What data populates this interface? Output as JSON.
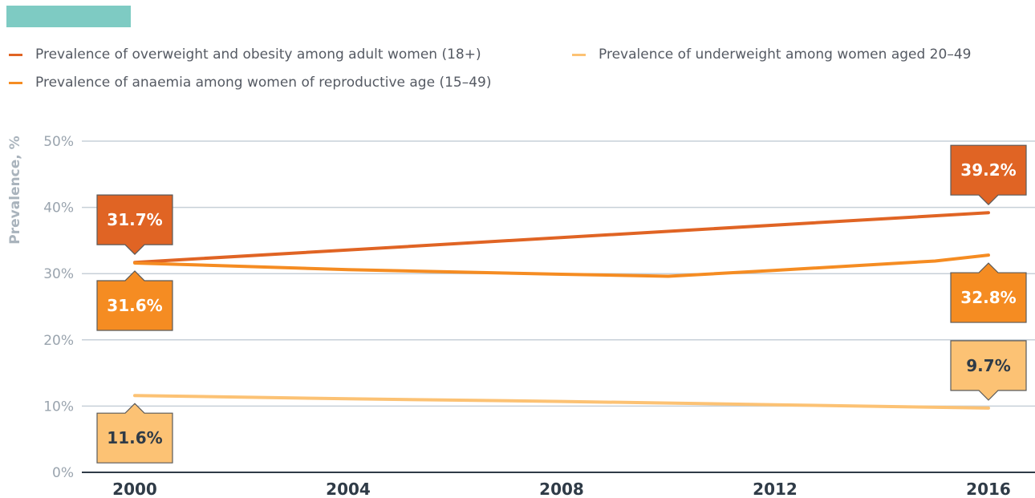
{
  "chart_data": {
    "type": "line",
    "title": "",
    "xlabel": "",
    "ylabel": "Prevalence, %",
    "x": [
      2000,
      2004,
      2008,
      2010,
      2012,
      2015,
      2016
    ],
    "x_ticks": [
      "2000",
      "2004",
      "2008",
      "2012",
      "2016"
    ],
    "y_ticks": [
      "0%",
      "10%",
      "20%",
      "30%",
      "40%",
      "50%"
    ],
    "xlim": [
      2000,
      2016
    ],
    "ylim": [
      0,
      50
    ],
    "grid": true,
    "legend_position": "top-left",
    "series": [
      {
        "name": "Prevalence of overweight and obesity among adult women (18+)",
        "color": "#e06424",
        "x": [
          2000,
          2016
        ],
        "values": [
          31.7,
          39.2
        ],
        "labels": [
          {
            "x": 2000,
            "text": "31.7%",
            "position": "above"
          },
          {
            "x": 2016,
            "text": "39.2%",
            "position": "above"
          }
        ]
      },
      {
        "name": "Prevalence of underweight among women aged 20–49",
        "color": "#fcc274",
        "x": [
          2000,
          2004,
          2008,
          2012,
          2016
        ],
        "values": [
          11.6,
          11.1,
          10.7,
          10.2,
          9.7
        ],
        "labels": [
          {
            "x": 2000,
            "text": "11.6%",
            "position": "below"
          },
          {
            "x": 2016,
            "text": "9.7%",
            "position": "above"
          }
        ]
      },
      {
        "name": "Prevalence of anaemia among women of reproductive age (15–49)",
        "color": "#f58c22",
        "x": [
          2000,
          2004,
          2008,
          2010,
          2012,
          2015,
          2016
        ],
        "values": [
          31.6,
          30.6,
          29.9,
          29.6,
          30.5,
          31.9,
          32.8
        ],
        "labels": [
          {
            "x": 2000,
            "text": "31.6%",
            "position": "below"
          },
          {
            "x": 2016,
            "text": "32.8%",
            "position": "below"
          }
        ]
      }
    ]
  },
  "colors": {
    "accent": "#7ecbc3",
    "grid": "#c7d0d8",
    "axis": "#2f3b47",
    "tick": "#9aa4ae",
    "dark_text": "#2f3b47"
  }
}
